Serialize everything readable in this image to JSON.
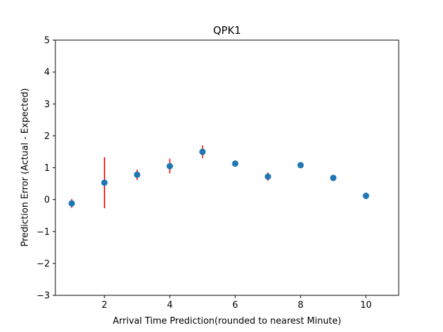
{
  "chart_data": {
    "type": "scatter",
    "title": "QPK1",
    "xlabel": "Arrival Time Prediction(rounded to nearest Minute)",
    "ylabel": "Prediction Error (Actual - Expected)",
    "xlim": [
      0.5,
      11
    ],
    "ylim": [
      -3,
      5
    ],
    "xticks": [
      2,
      4,
      6,
      8,
      10
    ],
    "yticks": [
      -3,
      -2,
      -1,
      0,
      1,
      2,
      3,
      4,
      5
    ],
    "grid": false,
    "marker_color": "#1f77b4",
    "errorbar_color": "#ff0000",
    "points": [
      {
        "x": 1,
        "y": -0.12,
        "err": 0.14
      },
      {
        "x": 2,
        "y": 0.53,
        "err": 0.8
      },
      {
        "x": 3,
        "y": 0.78,
        "err": 0.16
      },
      {
        "x": 4,
        "y": 1.05,
        "err": 0.23
      },
      {
        "x": 5,
        "y": 1.5,
        "err": 0.2
      },
      {
        "x": 6,
        "y": 1.13,
        "err": 0.05
      },
      {
        "x": 7,
        "y": 0.72,
        "err": 0.13
      },
      {
        "x": 8,
        "y": 1.08,
        "err": 0
      },
      {
        "x": 9,
        "y": 0.68,
        "err": 0
      },
      {
        "x": 10,
        "y": 0.12,
        "err": 0.1
      }
    ]
  }
}
